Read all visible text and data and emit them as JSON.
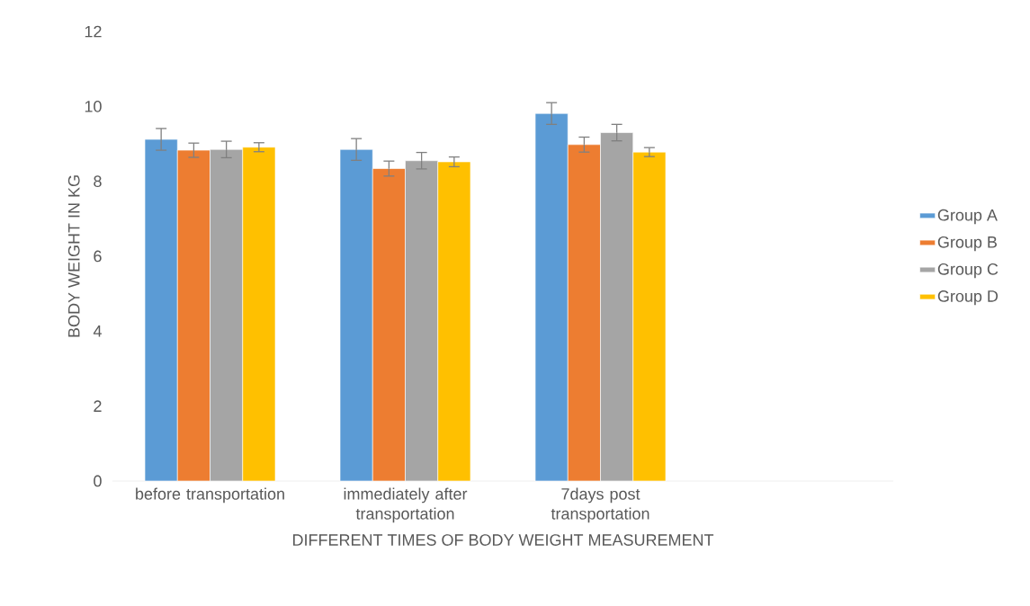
{
  "chart_data": {
    "type": "bar",
    "xlabel": "DIFFERENT TIMES OF BODY WEIGHT MEASUREMENT",
    "ylabel": "BODY WEIGHT IN KG",
    "categories": [
      "before transportation",
      "immediately after transportation",
      "7days post transportation",
      null
    ],
    "series": [
      {
        "name": "Group A",
        "color": "#5b9bd5",
        "values": [
          9.12,
          8.85,
          9.81,
          null
        ],
        "errors": [
          0.29,
          0.29,
          0.29,
          null
        ]
      },
      {
        "name": "Group B",
        "color": "#ed7d31",
        "values": [
          8.83,
          8.34,
          8.98,
          null
        ],
        "errors": [
          0.19,
          0.2,
          0.2,
          null
        ]
      },
      {
        "name": "Group C",
        "color": "#a5a5a5",
        "values": [
          8.85,
          8.55,
          9.3,
          null
        ],
        "errors": [
          0.22,
          0.22,
          0.22,
          null
        ]
      },
      {
        "name": "Group D",
        "color": "#ffc000",
        "values": [
          8.91,
          8.52,
          8.78,
          null
        ],
        "errors": [
          0.12,
          0.13,
          0.12,
          null
        ]
      }
    ],
    "ylim": [
      0,
      12
    ],
    "yticks": [
      0,
      2,
      4,
      6,
      8,
      10,
      12
    ],
    "grid": false,
    "legend": "right"
  }
}
